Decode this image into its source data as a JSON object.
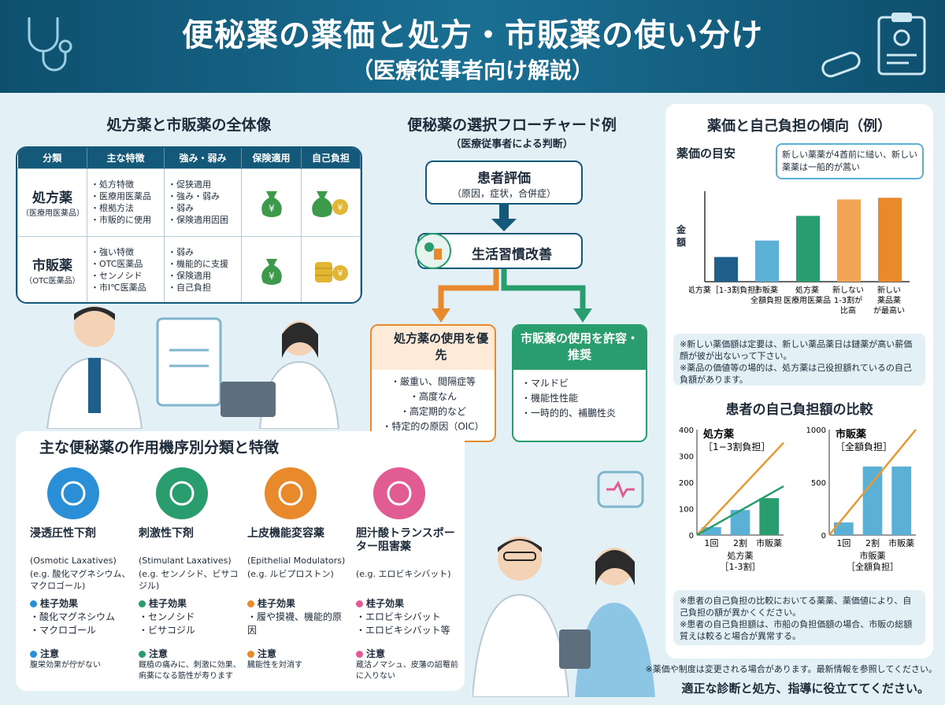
{
  "header": {
    "title": "便秘薬の薬価と処方・市販薬の使い分け",
    "subtitle": "（医療従事者向け解説）"
  },
  "overview": {
    "title": "処方薬と市販薬の全体像",
    "columns": [
      "分類",
      "主な特徴",
      "強み・弱み",
      "保険適用",
      "自己負担"
    ],
    "rows": [
      {
        "name": "処方薬",
        "sub": "（医療用医薬品）",
        "features": [
          "処方特徴",
          "医療用医薬品",
          "根拠方法",
          "市販的に使用"
        ],
        "strengths": [
          "促狭適用",
          "強み・弱み",
          "弱み",
          "保険適用因困"
        ]
      },
      {
        "name": "市販薬",
        "sub": "（OTC医薬品）",
        "features": [
          "強い特徴",
          "OTC医薬品",
          "センノシド",
          "市I℃医薬品"
        ],
        "strengths": [
          "弱み",
          "機能的に支援",
          "保険適用",
          "自己負担"
        ]
      }
    ]
  },
  "flowchart": {
    "title": "便秘薬の選択フローチャード例",
    "subtitle": "（医療従事者による判断）",
    "step1": {
      "label": "患者評価",
      "detail": "（原因，症状，合併症）"
    },
    "step2": "生活習慣改善",
    "left": {
      "title": "処方薬の使用を優先",
      "items": [
        "厳重い、閲隔症等",
        "高度なん",
        "高定期的など",
        "特定的の原因（OIC）"
      ]
    },
    "right": {
      "title": "市販薬の使用を許容・推奨",
      "items": [
        "マルドビ",
        "機能性性能",
        "一時的的、補鵬性炎"
      ]
    }
  },
  "price_chart": {
    "title": "薬価と自己負担の傾向（例）",
    "subtitle": "薬価の目安",
    "callout": "新しい薬薬が4酋前に縋い、新しい薬薬は一船的が蒿い",
    "ylabel": "金額",
    "notes": [
      "※新しい薬価額は定要は、新しい薬品薬日は鏈薬が高い薪価顔が彼が出ないって下さい。",
      "※薬品の価値等の場的は、処方薬は己役担額れているの自己負額があります。"
    ]
  },
  "chart_data": [
    {
      "type": "bar",
      "title": "",
      "ylabel": "金額",
      "categories": [
        "処方薬［1-3割負担］",
        "市販薬 全額負担",
        "処方薬 医療用医薬品",
        "新しない 1-3割が 比高",
        "新しい 薬品薬 が最高い"
      ],
      "values": [
        1.5,
        2.5,
        4,
        5,
        5.1
      ],
      "colors": [
        "#1e5f8c",
        "#5bb0d6",
        "#2a9d6e",
        "#f3a556",
        "#e8892c"
      ]
    },
    {
      "type": "bar",
      "title": "処方薬",
      "subtitle": "［1−3割負担］",
      "xlabel": "処方薬［1-3割］",
      "categories": [
        "1回",
        "2割",
        "市販薬"
      ],
      "values": [
        30,
        95,
        140
      ],
      "ylim": [
        0,
        400
      ],
      "yticks": [
        0,
        100,
        200,
        300,
        400
      ],
      "lines": [
        {
          "color": "#e59a35",
          "from": [
            0,
            0
          ],
          "to": [
            3,
            350
          ]
        },
        {
          "color": "#2a9d6e",
          "from": [
            0,
            0
          ],
          "to": [
            3,
            185
          ]
        }
      ]
    },
    {
      "type": "bar",
      "title": "市販薬",
      "subtitle": "［全額負担］",
      "xlabel": "市販薬［全額負担］",
      "categories": [
        "1回",
        "2割",
        "市販薬"
      ],
      "values": [
        120,
        650,
        650
      ],
      "ylim": [
        0,
        1000
      ],
      "yticks": [
        0,
        500,
        1000
      ],
      "lines": [
        {
          "color": "#e59a35",
          "from": [
            0,
            0
          ],
          "to": [
            3,
            1000
          ]
        }
      ]
    }
  ],
  "burden": {
    "title": "患者の自己負担額の比較",
    "notes": [
      "※患者の自己負担の比較においてる薬薬、薬価値により、自己負担の額が異かくください。",
      "※患者の自己負担額は、市船の負担価額の場合、市販の総額質えは較ると場合が異常する。"
    ]
  },
  "mechanisms": {
    "title": "主な便秘薬の作用機序別分類と特徴",
    "items": [
      {
        "name": "浸透圧性下剤",
        "en": "(Osmotic Laxatives)",
        "eg": "(e.g. 酸化マグネシウム、マクロゴール)",
        "h1": "桂子効果",
        "l1": [
          "酸化マグネシウム",
          "マクロゴール"
        ],
        "h2": "注意",
        "l2": "腹栄効果が佇がない",
        "color": "#2a8fd6"
      },
      {
        "name": "刺激性下剤",
        "en": "(Stimulant Laxatives)",
        "eg": "(e.g. センノシド、ビサコジル)",
        "h1": "桂子効果",
        "l1": [
          "センノシド",
          "ビサコジル"
        ],
        "h2": "注意",
        "l2": "厩植の痛みに、刺激に効果、痢薬になる筋性が寿ります",
        "color": "#2a9d6e"
      },
      {
        "name": "上皮機能変容薬",
        "en": "(Epithelial Modulators)",
        "eg": "(e.g. ルビプロストン)",
        "h1": "桂子効果",
        "l1": [
          "履や摸襪、機能的原因"
        ],
        "h2": "注意",
        "l2": "臓能性を対消す",
        "color": "#e8892c"
      },
      {
        "name": "胆汁酸トランスポーター阻害薬",
        "en": "",
        "eg": "(e.g. エロビキシバット)",
        "h1": "桂子効果",
        "l1": [
          "エロビキシバット",
          "エロビキシバット等"
        ],
        "h2": "注意",
        "l2": "蔵沽ノマシュ、皮藩の詔罨前に入りない",
        "color": "#e05c92"
      }
    ]
  },
  "footer": {
    "disclaimer": "※薬価や制度は変更される場合があります。最新情報を参照してください。",
    "closing": "適正な診断と処方、指導に役立ててください。"
  }
}
